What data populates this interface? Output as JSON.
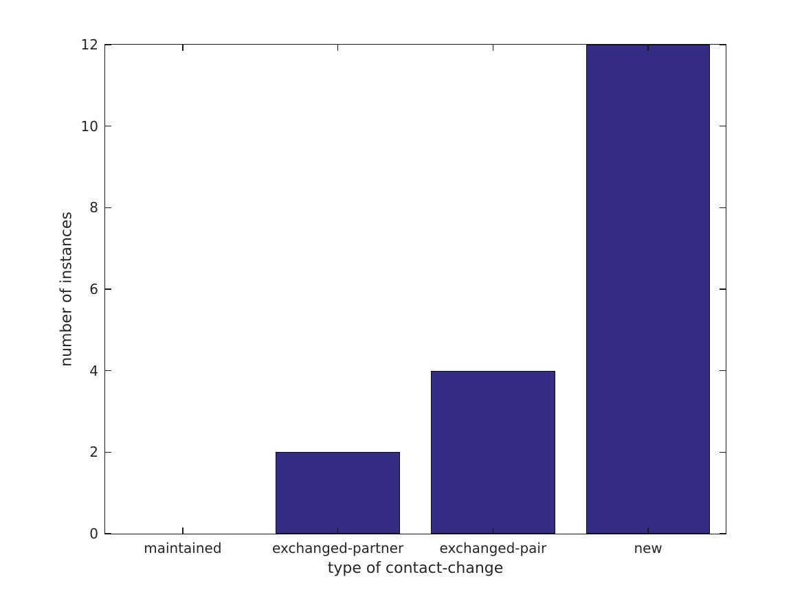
{
  "chart_data": {
    "type": "bar",
    "xlabel": "type of contact-change",
    "ylabel": "number of instances",
    "categories": [
      "maintained",
      "exchanged-partner",
      "exchanged-pair",
      "new"
    ],
    "values": [
      0,
      2,
      4,
      12
    ],
    "yticks": [
      0,
      2,
      4,
      6,
      8,
      10,
      12
    ],
    "ylim": [
      0,
      12
    ],
    "bar_width_fraction": 0.8,
    "bar_color": "#352D84",
    "bar_edge_color": "#0a0a0a",
    "axis_color": "#1a1a1a",
    "text_color": "#262626",
    "background_color": "#ffffff",
    "grid": false,
    "legend": "none",
    "tick_style": "inward, mirrored on all four sides"
  }
}
